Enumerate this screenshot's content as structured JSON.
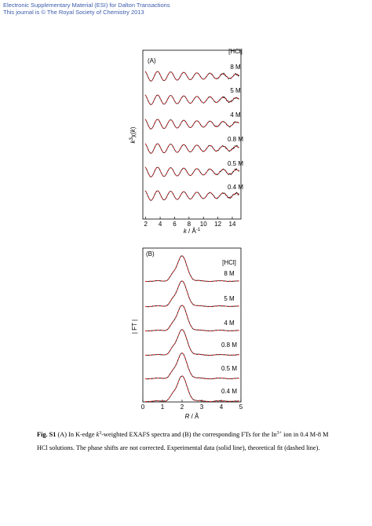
{
  "header": {
    "lines": [
      "Electronic Supplementary Material (ESI) for Dalton Transactions",
      "This journal is © The Royal Society of Chemistry 2013"
    ]
  },
  "figure": {
    "panels": [
      {
        "label": "(A)",
        "legend_title": "[HCl]",
        "traces": [
          "8 M",
          "5 M",
          "4 M",
          "0.8 M",
          "0.5 M",
          "0.4 M"
        ],
        "y_label": [
          "k",
          "3",
          "χ(",
          "k",
          ")"
        ],
        "x_label": [
          "k",
          " / Å",
          "-1"
        ],
        "xlim": [
          1.6,
          15.2
        ],
        "xticks": [
          2,
          4,
          6,
          8,
          10,
          12,
          14
        ]
      },
      {
        "label": "(B)",
        "legend_title": "[HCl]",
        "traces": [
          "8 M",
          "5 M",
          "4 M",
          "0.8 M",
          "0.5 M",
          "0.4 M"
        ],
        "y_label": [
          "| FT |"
        ],
        "x_label": [
          "R",
          " / Å"
        ],
        "xlim": [
          0,
          5
        ],
        "xticks": [
          0,
          1,
          2,
          3,
          4,
          5
        ]
      }
    ]
  },
  "caption": {
    "lines": [
      [
        "Fig. S1",
        " (A) In K-edge ",
        "k",
        "3",
        "-weighted EXAFS spectra and (B) the corresponding FTs for the In",
        "3+",
        " ion in 0.4 M-8 M"
      ],
      [
        "HCl solutions. The phase shifts are not corrected. Experimental data (solid line), theoretical fit (dashed line)."
      ]
    ]
  }
}
